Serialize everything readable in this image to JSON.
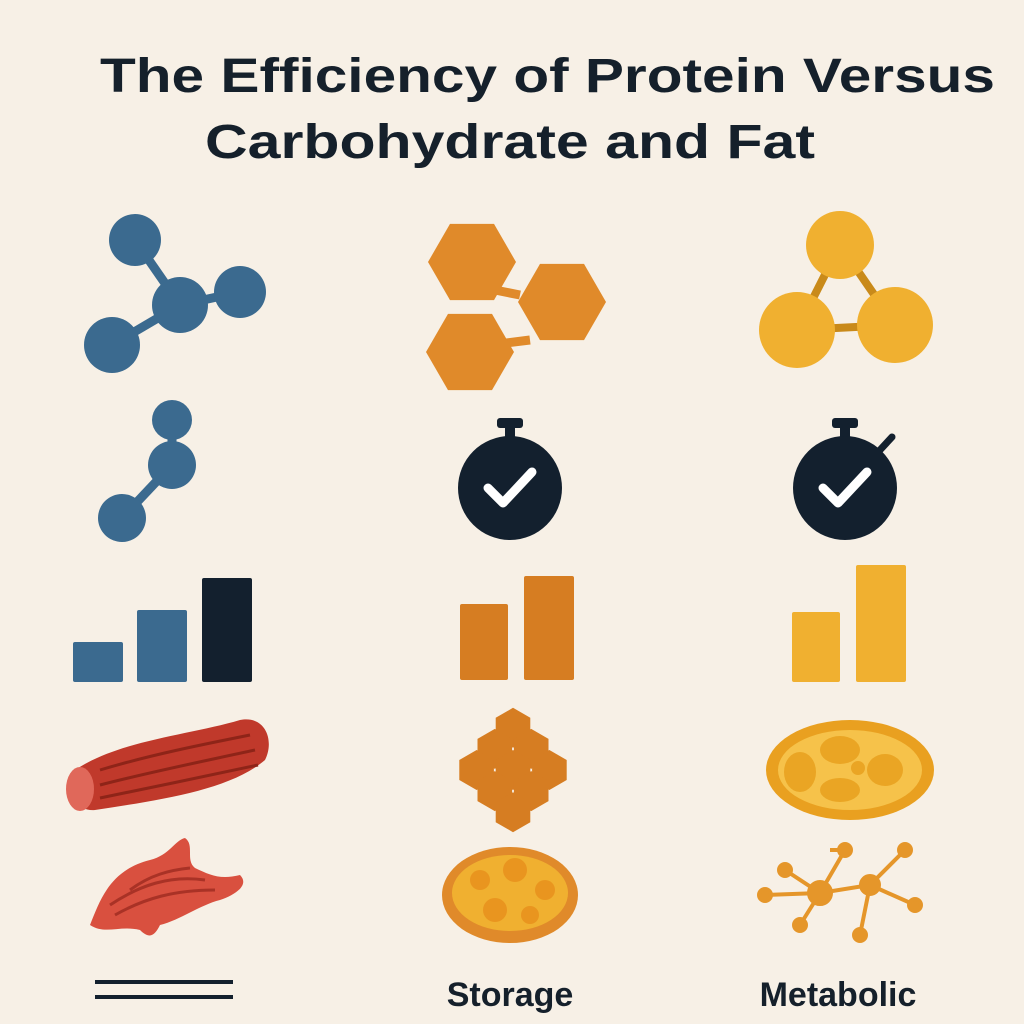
{
  "header": {
    "title_lines": [
      "The Efficiency of Protein Versus",
      "Carbohydrate and Fat"
    ]
  },
  "columns": [
    {
      "label": "Storage"
    },
    {
      "label": "Metabolic"
    }
  ]
}
